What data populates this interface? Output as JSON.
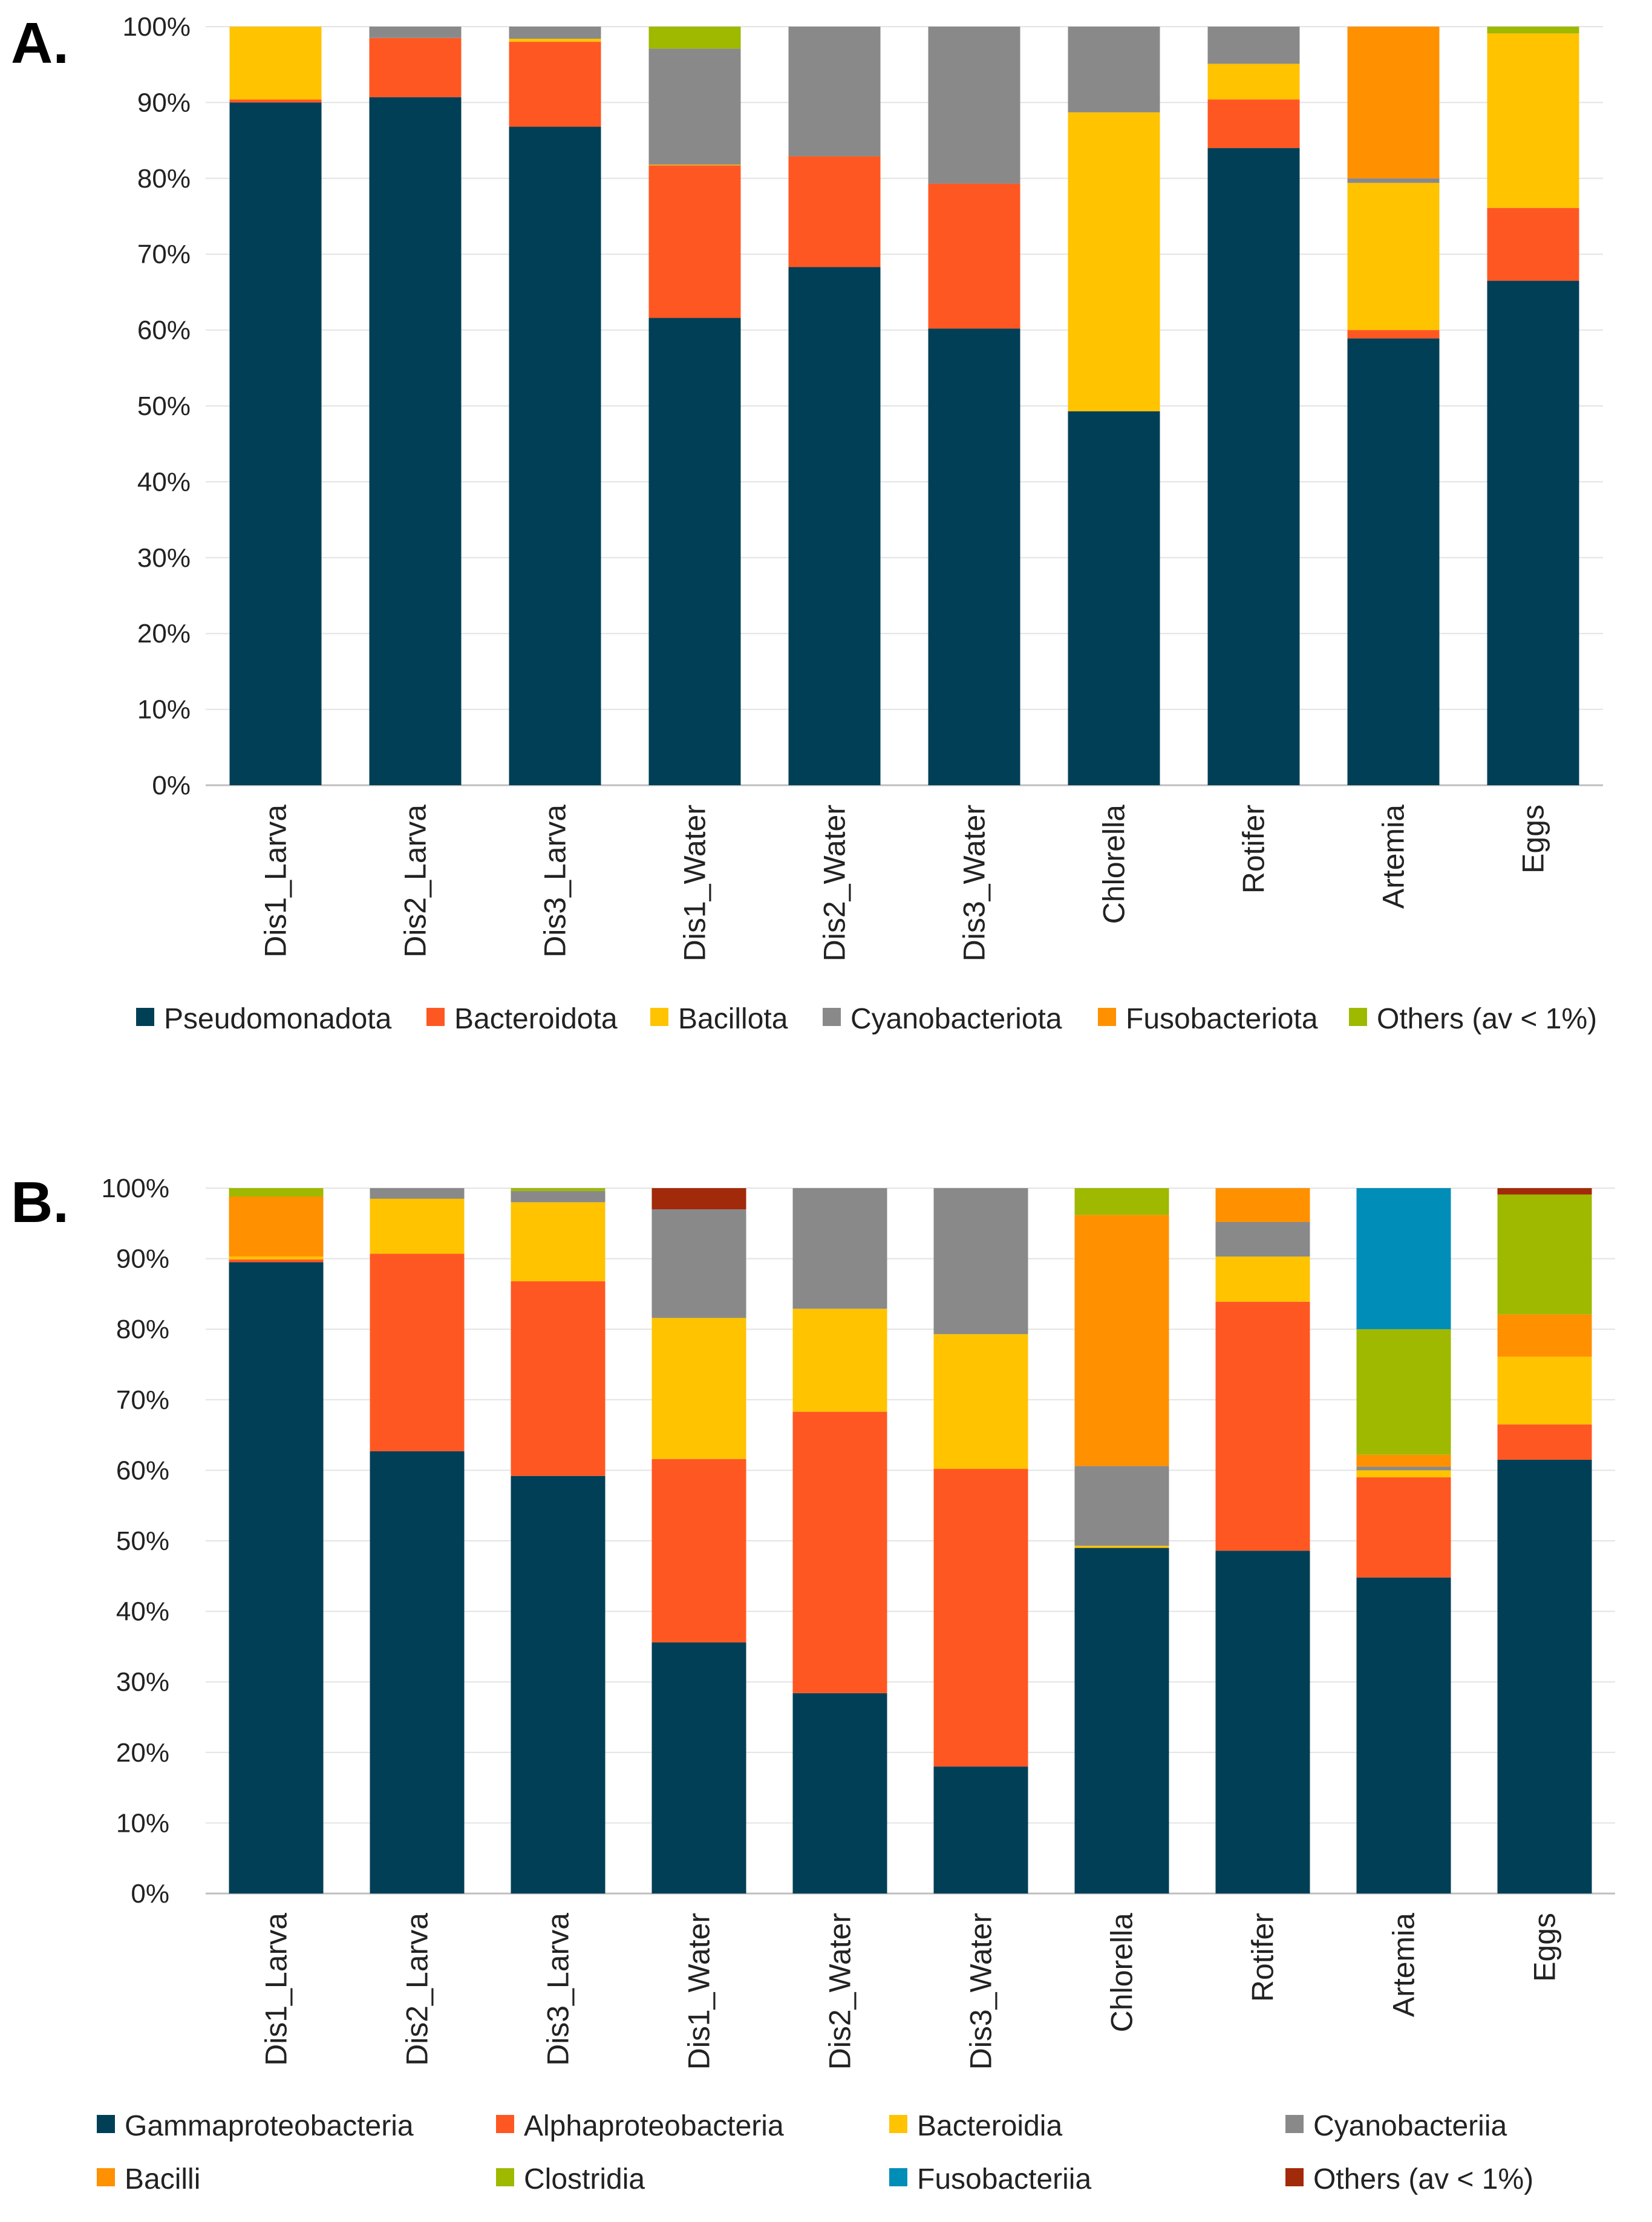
{
  "panel_labels": [
    "A.",
    "B."
  ],
  "chart_data": [
    {
      "type": "bar",
      "stacked": true,
      "percent": true,
      "title": "",
      "xlabel": "",
      "ylabel": "",
      "ylim": [
        0,
        100
      ],
      "yticks": [
        "0%",
        "10%",
        "20%",
        "30%",
        "40%",
        "50%",
        "60%",
        "70%",
        "80%",
        "90%",
        "100%"
      ],
      "legend_position": "bottom",
      "categories": [
        "Dis1_Larva",
        "Dis2_Larva",
        "Dis3_Larva",
        "Dis1_Water",
        "Dis2_Water",
        "Dis3_Water",
        "Chlorella",
        "Rotifer",
        "Artemia",
        "Eggs"
      ],
      "series": [
        {
          "name": "Pseudomonadota",
          "color": "#003F56",
          "values": [
            90.0,
            90.7,
            86.8,
            61.6,
            68.3,
            60.2,
            49.3,
            84.0,
            58.9,
            66.5
          ]
        },
        {
          "name": "Bacteroidota",
          "color": "#FF5722",
          "values": [
            0.4,
            7.8,
            11.2,
            20.1,
            14.6,
            19.1,
            0.0,
            6.4,
            1.1,
            9.6
          ]
        },
        {
          "name": "Bacillota",
          "color": "#FFC300",
          "values": [
            9.6,
            0.0,
            0.4,
            0.1,
            0.0,
            0.0,
            39.4,
            4.7,
            19.4,
            23.0
          ]
        },
        {
          "name": "Cyanobacteriota",
          "color": "#898989",
          "values": [
            0.0,
            1.5,
            1.6,
            15.3,
            17.1,
            20.7,
            11.3,
            4.9,
            0.6,
            0.0
          ]
        },
        {
          "name": "Fusobacteriota",
          "color": "#FF9000",
          "values": [
            0.0,
            0.0,
            0.0,
            0.0,
            0.0,
            0.0,
            0.0,
            0.0,
            20.0,
            0.0
          ]
        },
        {
          "name": "Others (av < 1%)",
          "color": "#9FB800",
          "values": [
            0.0,
            0.0,
            0.0,
            2.9,
            0.0,
            0.0,
            0.0,
            0.0,
            0.0,
            0.9
          ]
        }
      ]
    },
    {
      "type": "bar",
      "stacked": true,
      "percent": true,
      "title": "",
      "xlabel": "",
      "ylabel": "",
      "ylim": [
        0,
        100
      ],
      "yticks": [
        "0%",
        "10%",
        "20%",
        "30%",
        "40%",
        "50%",
        "60%",
        "70%",
        "80%",
        "90%",
        "100%"
      ],
      "legend_position": "bottom",
      "categories": [
        "Dis1_Larva",
        "Dis2_Larva",
        "Dis3_Larva",
        "Dis1_Water",
        "Dis2_Water",
        "Dis3_Water",
        "Chlorella",
        "Rotifer",
        "Artemia",
        "Eggs"
      ],
      "series": [
        {
          "name": "Gammaproteobacteria",
          "color": "#003F56",
          "values": [
            89.5,
            62.7,
            59.2,
            35.6,
            28.4,
            18.0,
            49.0,
            48.6,
            44.8,
            61.5
          ]
        },
        {
          "name": "Alphaproteobacteria",
          "color": "#FF5722",
          "values": [
            0.4,
            28.0,
            27.6,
            26.0,
            39.9,
            42.2,
            0.0,
            35.3,
            14.2,
            5.0
          ]
        },
        {
          "name": "Bacteroidia",
          "color": "#FFC300",
          "values": [
            0.4,
            7.8,
            11.2,
            20.0,
            14.6,
            19.1,
            0.3,
            6.4,
            1.0,
            9.6
          ]
        },
        {
          "name": "Cyanobacteriia",
          "color": "#898989",
          "values": [
            0.0,
            1.5,
            1.6,
            15.4,
            17.1,
            20.7,
            11.3,
            4.9,
            0.5,
            0.0
          ]
        },
        {
          "name": "Bacilli",
          "color": "#FF9000",
          "values": [
            8.5,
            0.0,
            0.0,
            0.0,
            0.0,
            0.0,
            35.6,
            4.8,
            1.7,
            6.0
          ]
        },
        {
          "name": "Clostridia",
          "color": "#9FB800",
          "values": [
            1.2,
            0.0,
            0.4,
            0.0,
            0.0,
            0.0,
            3.8,
            0.0,
            17.8,
            17.0
          ]
        },
        {
          "name": "Fusobacteriia",
          "color": "#008DB8",
          "values": [
            0.0,
            0.0,
            0.0,
            0.0,
            0.0,
            0.0,
            0.0,
            0.0,
            20.0,
            0.0
          ]
        },
        {
          "name": "Others (av < 1%)",
          "color": "#A12A0A",
          "values": [
            0.0,
            0.0,
            0.0,
            3.0,
            0.0,
            0.0,
            0.0,
            0.0,
            0.0,
            0.9
          ]
        }
      ]
    }
  ]
}
